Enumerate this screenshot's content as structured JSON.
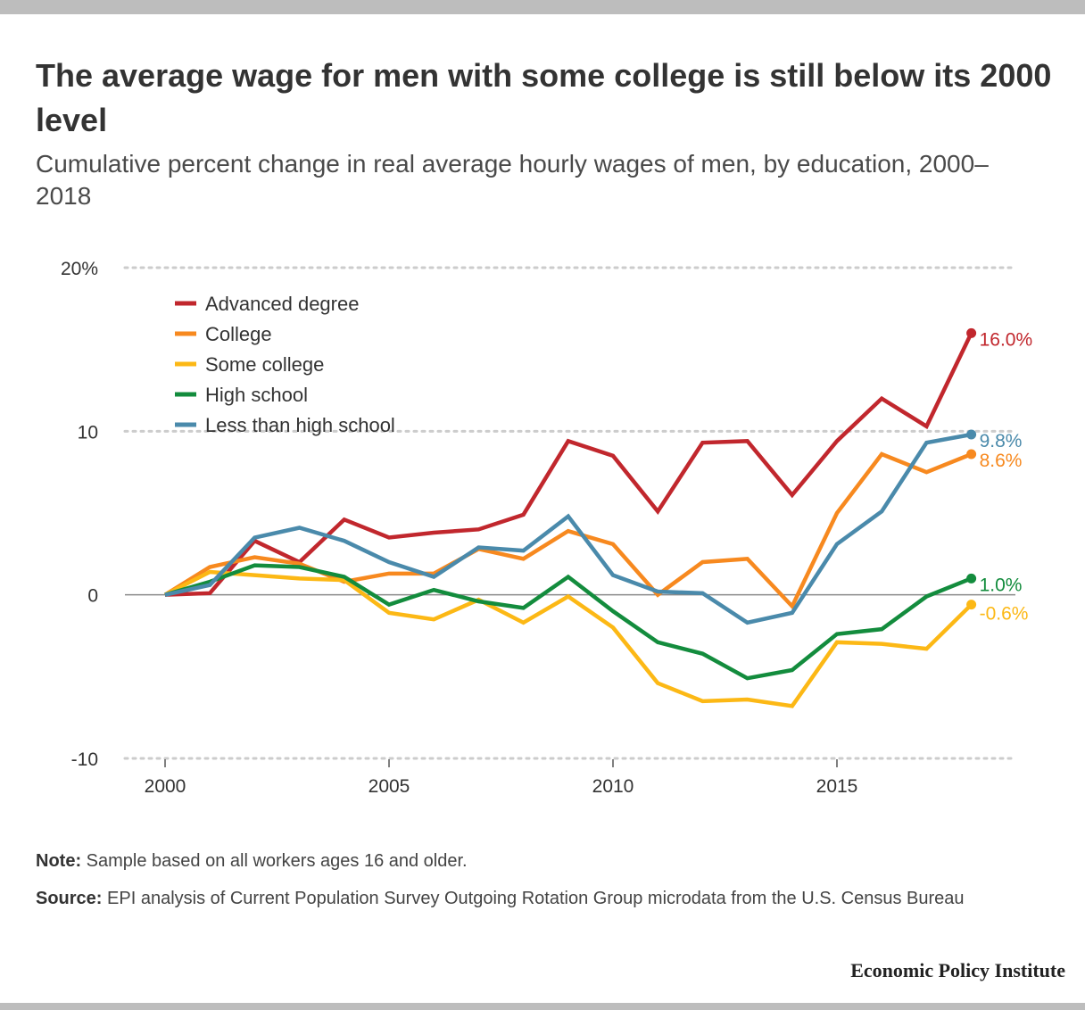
{
  "title": "The average wage for men with some college is still below its 2000 level",
  "subtitle": "Cumulative percent change in real average hourly wages of men, by education, 2000–2018",
  "note_label": "Note:",
  "note_text": " Sample based on all workers ages 16 and older.",
  "source_label": "Source:",
  "source_text": " EPI analysis of Current Population Survey Outgoing Rotation Group microdata from the U.S. Census Bureau",
  "brand": "Economic Policy Institute",
  "chart_data": {
    "type": "line",
    "title": "The average wage for men with some college is still below its 2000 level",
    "subtitle": "Cumulative percent change in real average hourly wages of men, by education, 2000–2018",
    "xlabel": "",
    "ylabel": "",
    "x": [
      2000,
      2001,
      2002,
      2003,
      2004,
      2005,
      2006,
      2007,
      2008,
      2009,
      2010,
      2011,
      2012,
      2013,
      2014,
      2015,
      2016,
      2017,
      2018
    ],
    "xticks": [
      2000,
      2005,
      2010,
      2015
    ],
    "yticks": [
      -10,
      0,
      10,
      20
    ],
    "ytick_labels": [
      "-10",
      "0",
      "10",
      "20%"
    ],
    "ylim": [
      -10,
      20
    ],
    "xlim": [
      1999.1,
      2019
    ],
    "grid": "horizontal dotted",
    "legend": "top-left",
    "series": [
      {
        "name": "Advanced degree",
        "color": "#c1272d",
        "end_label": "16.0%",
        "values": [
          0,
          0.1,
          3.3,
          2.0,
          4.6,
          3.5,
          3.8,
          4.0,
          4.9,
          9.4,
          8.5,
          5.1,
          9.3,
          9.4,
          6.1,
          9.4,
          12.0,
          10.3,
          16.0
        ]
      },
      {
        "name": "College",
        "color": "#f7891f",
        "end_label": "8.6%",
        "values": [
          0,
          1.7,
          2.3,
          1.9,
          0.8,
          1.3,
          1.3,
          2.8,
          2.2,
          3.9,
          3.1,
          0.0,
          2.0,
          2.2,
          -0.7,
          5.0,
          8.6,
          7.5,
          8.6
        ]
      },
      {
        "name": "Some college",
        "color": "#fcb815",
        "end_label": "-0.6%",
        "values": [
          0,
          1.4,
          1.2,
          1.0,
          0.9,
          -1.1,
          -1.5,
          -0.3,
          -1.7,
          -0.1,
          -2.0,
          -5.4,
          -6.5,
          -6.4,
          -6.8,
          -2.9,
          -3.0,
          -3.3,
          -0.6
        ]
      },
      {
        "name": "High school",
        "color": "#138c3d",
        "end_label": "1.0%",
        "values": [
          0,
          0.8,
          1.8,
          1.7,
          1.1,
          -0.6,
          0.3,
          -0.4,
          -0.8,
          1.1,
          -1.0,
          -2.9,
          -3.6,
          -5.1,
          -4.6,
          -2.4,
          -2.1,
          -0.1,
          1.0
        ]
      },
      {
        "name": "Less than high school",
        "color": "#4a8aab",
        "end_label": "9.8%",
        "values": [
          0,
          0.6,
          3.5,
          4.1,
          3.3,
          2.0,
          1.1,
          2.9,
          2.7,
          4.8,
          1.2,
          0.2,
          0.1,
          -1.7,
          -1.1,
          3.1,
          5.1,
          9.3,
          9.8
        ]
      }
    ]
  }
}
